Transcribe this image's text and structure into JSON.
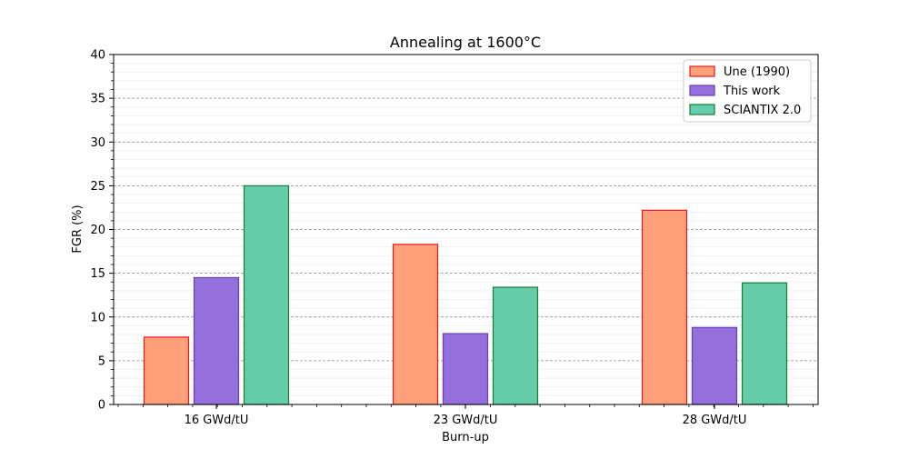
{
  "chart_data": {
    "type": "bar",
    "title": "Annealing at 1600°C",
    "xlabel": "Burn-up",
    "ylabel": "FGR (%)",
    "categories": [
      "16 GWd/tU",
      "23 GWd/tU",
      "28 GWd/tU"
    ],
    "series": [
      {
        "name": "Une (1990)",
        "values": [
          7.7,
          18.3,
          22.2
        ],
        "fill": "#ffa07a",
        "stroke": "#e41a1c"
      },
      {
        "name": "This work",
        "values": [
          14.5,
          8.1,
          8.8
        ],
        "fill": "#9370db",
        "stroke": "#6a3dbb"
      },
      {
        "name": "SCIANTIX 2.0",
        "values": [
          25.0,
          13.4,
          13.9
        ],
        "fill": "#66cdaa",
        "stroke": "#1a7a36"
      }
    ],
    "ylim": [
      0,
      40
    ],
    "yticks": [
      "0",
      "5",
      "10",
      "15",
      "20",
      "25",
      "30",
      "35",
      "40"
    ],
    "grid": "major y dashed",
    "legend_position": "top-right"
  }
}
